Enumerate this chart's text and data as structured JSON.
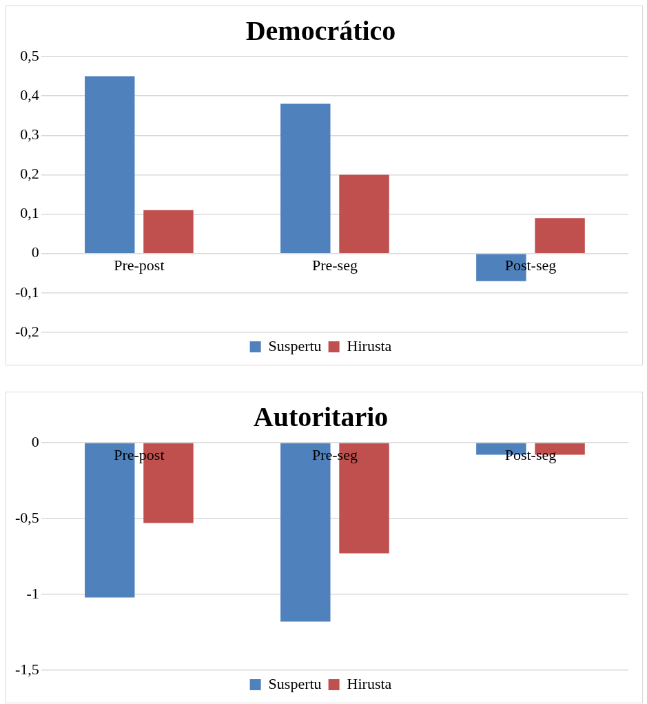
{
  "chart_data": [
    {
      "type": "bar",
      "title": "Democrático",
      "categories": [
        "Pre-post",
        "Pre-seg",
        "Post-seg"
      ],
      "series": [
        {
          "name": "Suspertu",
          "color": "#4f81bd",
          "values": [
            0.45,
            0.38,
            -0.07
          ]
        },
        {
          "name": "Hirusta",
          "color": "#c0504d",
          "values": [
            0.11,
            0.2,
            0.09
          ]
        }
      ],
      "ylim": [
        -0.2,
        0.5
      ],
      "yticks": [
        {
          "value": -0.2,
          "label": "-0,2"
        },
        {
          "value": -0.1,
          "label": "-0,1"
        },
        {
          "value": 0,
          "label": "0"
        },
        {
          "value": 0.1,
          "label": "0,1"
        },
        {
          "value": 0.2,
          "label": "0,2"
        },
        {
          "value": 0.3,
          "label": "0,3"
        },
        {
          "value": 0.4,
          "label": "0,4"
        },
        {
          "value": 0.5,
          "label": "0,5"
        }
      ],
      "grid": "y",
      "legend": "bottom"
    },
    {
      "type": "bar",
      "title": "Autoritario",
      "categories": [
        "Pre-post",
        "Pre-seg",
        "Post-seg"
      ],
      "series": [
        {
          "name": "Suspertu",
          "color": "#4f81bd",
          "values": [
            -1.02,
            -1.18,
            -0.08
          ]
        },
        {
          "name": "Hirusta",
          "color": "#c0504d",
          "values": [
            -0.53,
            -0.73,
            -0.08
          ]
        }
      ],
      "ylim": [
        -1.5,
        0
      ],
      "yticks": [
        {
          "value": -1.5,
          "label": "-1,5"
        },
        {
          "value": -1,
          "label": "-1"
        },
        {
          "value": -0.5,
          "label": "-0,5"
        },
        {
          "value": 0,
          "label": "0"
        }
      ],
      "grid": "y",
      "legend": "bottom"
    }
  ]
}
